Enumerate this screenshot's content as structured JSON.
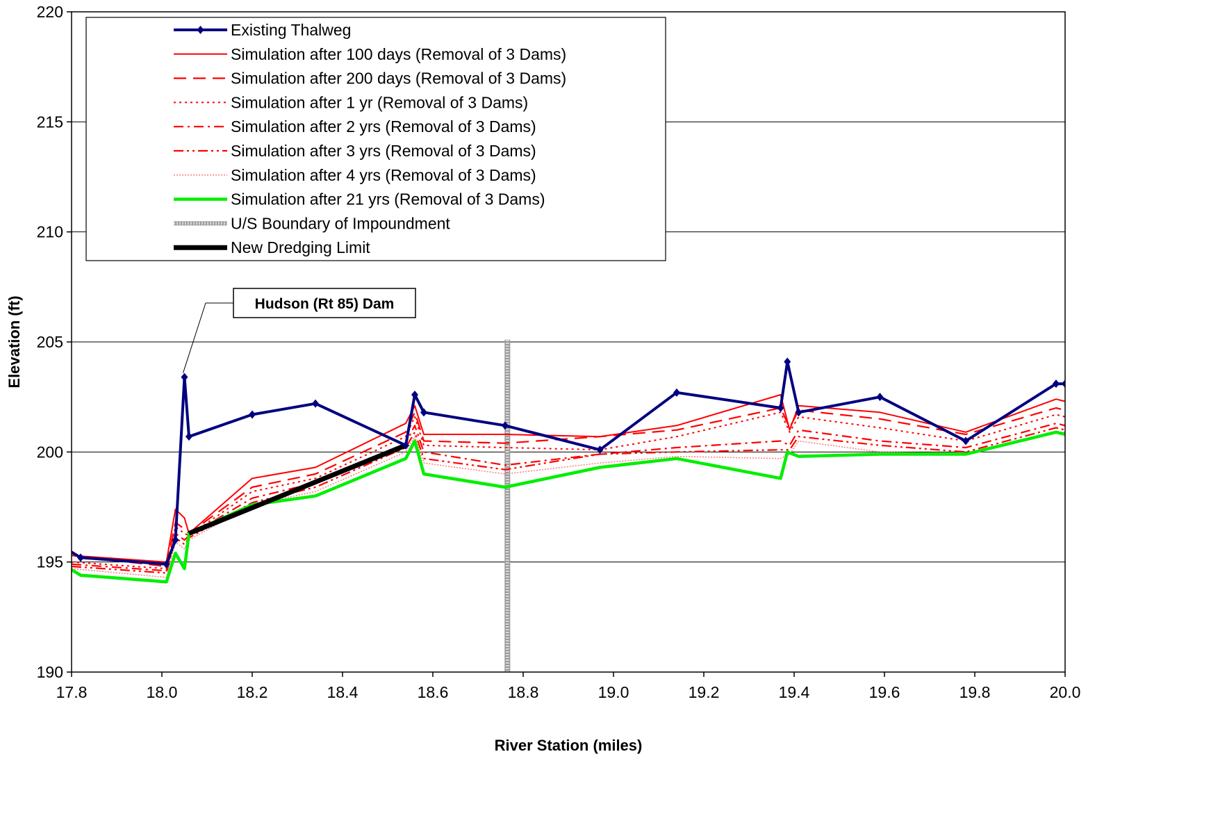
{
  "chart_data": {
    "type": "line",
    "xlabel": "River Station (miles)",
    "ylabel": "Elevation (ft)",
    "xlim": [
      17.8,
      20.0
    ],
    "ylim": [
      190,
      220
    ],
    "xticks": [
      "17.8",
      "18.0",
      "18.2",
      "18.4",
      "18.6",
      "18.8",
      "19.0",
      "19.2",
      "19.4",
      "19.6",
      "19.8",
      "20.0"
    ],
    "yticks": [
      "190",
      "195",
      "200",
      "205",
      "210",
      "215",
      "220"
    ],
    "grid": "horizontal",
    "legend_position": "top-left",
    "series": [
      {
        "name": "Existing Thalweg",
        "color": "#000080",
        "style": "solid-marker",
        "x": [
          17.78,
          17.82,
          18.01,
          18.03,
          18.05,
          18.06,
          18.2,
          18.34,
          18.54,
          18.56,
          18.58,
          18.76,
          18.97,
          19.14,
          19.37,
          19.385,
          19.41,
          19.59,
          19.78,
          19.98,
          20.0
        ],
        "y": [
          195.7,
          195.2,
          194.9,
          196.0,
          203.4,
          200.7,
          201.7,
          202.2,
          200.3,
          202.6,
          201.8,
          201.2,
          200.1,
          202.7,
          202.0,
          204.1,
          201.8,
          202.5,
          200.5,
          203.1,
          203.1
        ]
      },
      {
        "name": "Simulation after 100 days (Removal of 3 Dams)",
        "color": "#ff0000",
        "style": "solid",
        "x": [
          17.8,
          18.01,
          18.03,
          18.05,
          18.06,
          18.2,
          18.34,
          18.54,
          18.56,
          18.58,
          18.76,
          18.97,
          19.14,
          19.37,
          19.39,
          19.41,
          19.59,
          19.78,
          19.98,
          20.0
        ],
        "y": [
          195.3,
          195.0,
          197.4,
          197.0,
          196.3,
          198.8,
          199.3,
          201.3,
          202.1,
          200.8,
          200.8,
          200.7,
          201.2,
          202.6,
          201.0,
          202.1,
          201.8,
          200.9,
          202.4,
          202.3
        ]
      },
      {
        "name": "Simulation after 200 days (Removal of 3 Dams)",
        "color": "#ff0000",
        "style": "long-dash",
        "x": [
          17.8,
          18.01,
          18.03,
          18.05,
          18.06,
          18.2,
          18.34,
          18.54,
          18.56,
          18.58,
          18.76,
          18.97,
          19.14,
          19.37,
          19.39,
          19.41,
          19.59,
          19.78,
          19.98,
          20.0
        ],
        "y": [
          195.3,
          194.8,
          196.8,
          196.5,
          196.3,
          198.4,
          199.0,
          200.9,
          201.8,
          200.5,
          200.4,
          200.7,
          201.0,
          202.0,
          201.1,
          201.9,
          201.5,
          200.8,
          202.0,
          201.9
        ]
      },
      {
        "name": "Simulation after 1 yr (Removal of 3 Dams)",
        "color": "#ff0000",
        "style": "dot",
        "x": [
          17.8,
          18.01,
          18.03,
          18.05,
          18.06,
          18.2,
          18.34,
          18.54,
          18.56,
          18.58,
          18.76,
          18.97,
          19.14,
          19.37,
          19.39,
          19.41,
          19.59,
          19.78,
          19.98,
          20.0
        ],
        "y": [
          195.0,
          194.7,
          196.6,
          196.3,
          196.2,
          198.2,
          198.8,
          200.7,
          201.6,
          200.3,
          200.2,
          200.1,
          200.7,
          201.8,
          200.9,
          201.6,
          201.1,
          200.5,
          201.7,
          201.6
        ]
      },
      {
        "name": "Simulation after 2 yrs (Removal of 3 Dams)",
        "color": "#ff0000",
        "style": "dash-dot",
        "x": [
          17.8,
          18.01,
          18.03,
          18.05,
          18.06,
          18.2,
          18.34,
          18.54,
          18.56,
          18.58,
          18.76,
          18.97,
          19.14,
          19.37,
          19.39,
          19.41,
          19.59,
          19.78,
          19.98,
          20.0
        ],
        "y": [
          194.9,
          194.6,
          196.3,
          196.0,
          196.2,
          197.9,
          198.6,
          200.4,
          201.2,
          200.0,
          199.4,
          199.9,
          200.2,
          200.5,
          200.3,
          201.0,
          200.5,
          200.2,
          201.3,
          201.2
        ]
      },
      {
        "name": "Simulation after 3 yrs (Removal of 3 Dams)",
        "color": "#ff0000",
        "style": "dash-dot-dot",
        "x": [
          17.8,
          18.01,
          18.03,
          18.05,
          18.06,
          18.2,
          18.34,
          18.54,
          18.56,
          18.58,
          18.76,
          18.97,
          19.14,
          19.37,
          19.39,
          19.41,
          19.59,
          19.78,
          19.98,
          20.0
        ],
        "y": [
          194.8,
          194.5,
          196.1,
          195.8,
          196.1,
          197.7,
          198.4,
          200.2,
          200.9,
          199.7,
          199.2,
          199.9,
          200.0,
          200.1,
          200.1,
          200.7,
          200.3,
          200.0,
          201.1,
          201.0
        ]
      },
      {
        "name": "Simulation after 4 yrs (Removal of 3 Dams)",
        "color": "#ff8080",
        "style": "thin-dot",
        "x": [
          17.8,
          18.01,
          18.03,
          18.05,
          18.06,
          18.2,
          18.34,
          18.54,
          18.56,
          18.58,
          18.76,
          18.97,
          19.14,
          19.37,
          19.39,
          19.41,
          19.59,
          19.78,
          19.98,
          20.0
        ],
        "y": [
          194.7,
          194.3,
          195.9,
          195.6,
          196.0,
          197.6,
          198.2,
          200.0,
          200.7,
          199.5,
          199.0,
          199.5,
          199.8,
          199.7,
          199.9,
          200.5,
          200.0,
          199.9,
          200.9,
          200.9
        ]
      },
      {
        "name": "Simulation after 21 yrs (Removal of 3 Dams)",
        "color": "#00ee00",
        "style": "thick",
        "x": [
          17.78,
          17.82,
          18.01,
          18.03,
          18.05,
          18.06,
          18.2,
          18.34,
          18.54,
          18.56,
          18.58,
          18.76,
          18.97,
          19.14,
          19.37,
          19.385,
          19.41,
          19.59,
          19.78,
          19.98,
          20.0
        ],
        "y": [
          194.9,
          194.4,
          194.1,
          195.4,
          194.7,
          196.3,
          197.6,
          198.0,
          199.7,
          200.5,
          199.0,
          198.4,
          199.3,
          199.7,
          198.8,
          200.0,
          199.8,
          199.9,
          199.9,
          200.9,
          200.8
        ]
      },
      {
        "name": "U/S Boundary of Impoundment",
        "color": "#b8b8b8",
        "style": "vertical-band",
        "x": [
          18.765,
          18.765
        ],
        "y": [
          190,
          205.1
        ]
      },
      {
        "name": "New Dredging Limit",
        "color": "#000000",
        "style": "heavy",
        "x": [
          18.06,
          18.54
        ],
        "y": [
          196.3,
          200.3
        ]
      }
    ],
    "annotations": [
      {
        "text": "Hudson (Rt 85) Dam",
        "x": 18.05,
        "y": 203.4
      }
    ]
  }
}
